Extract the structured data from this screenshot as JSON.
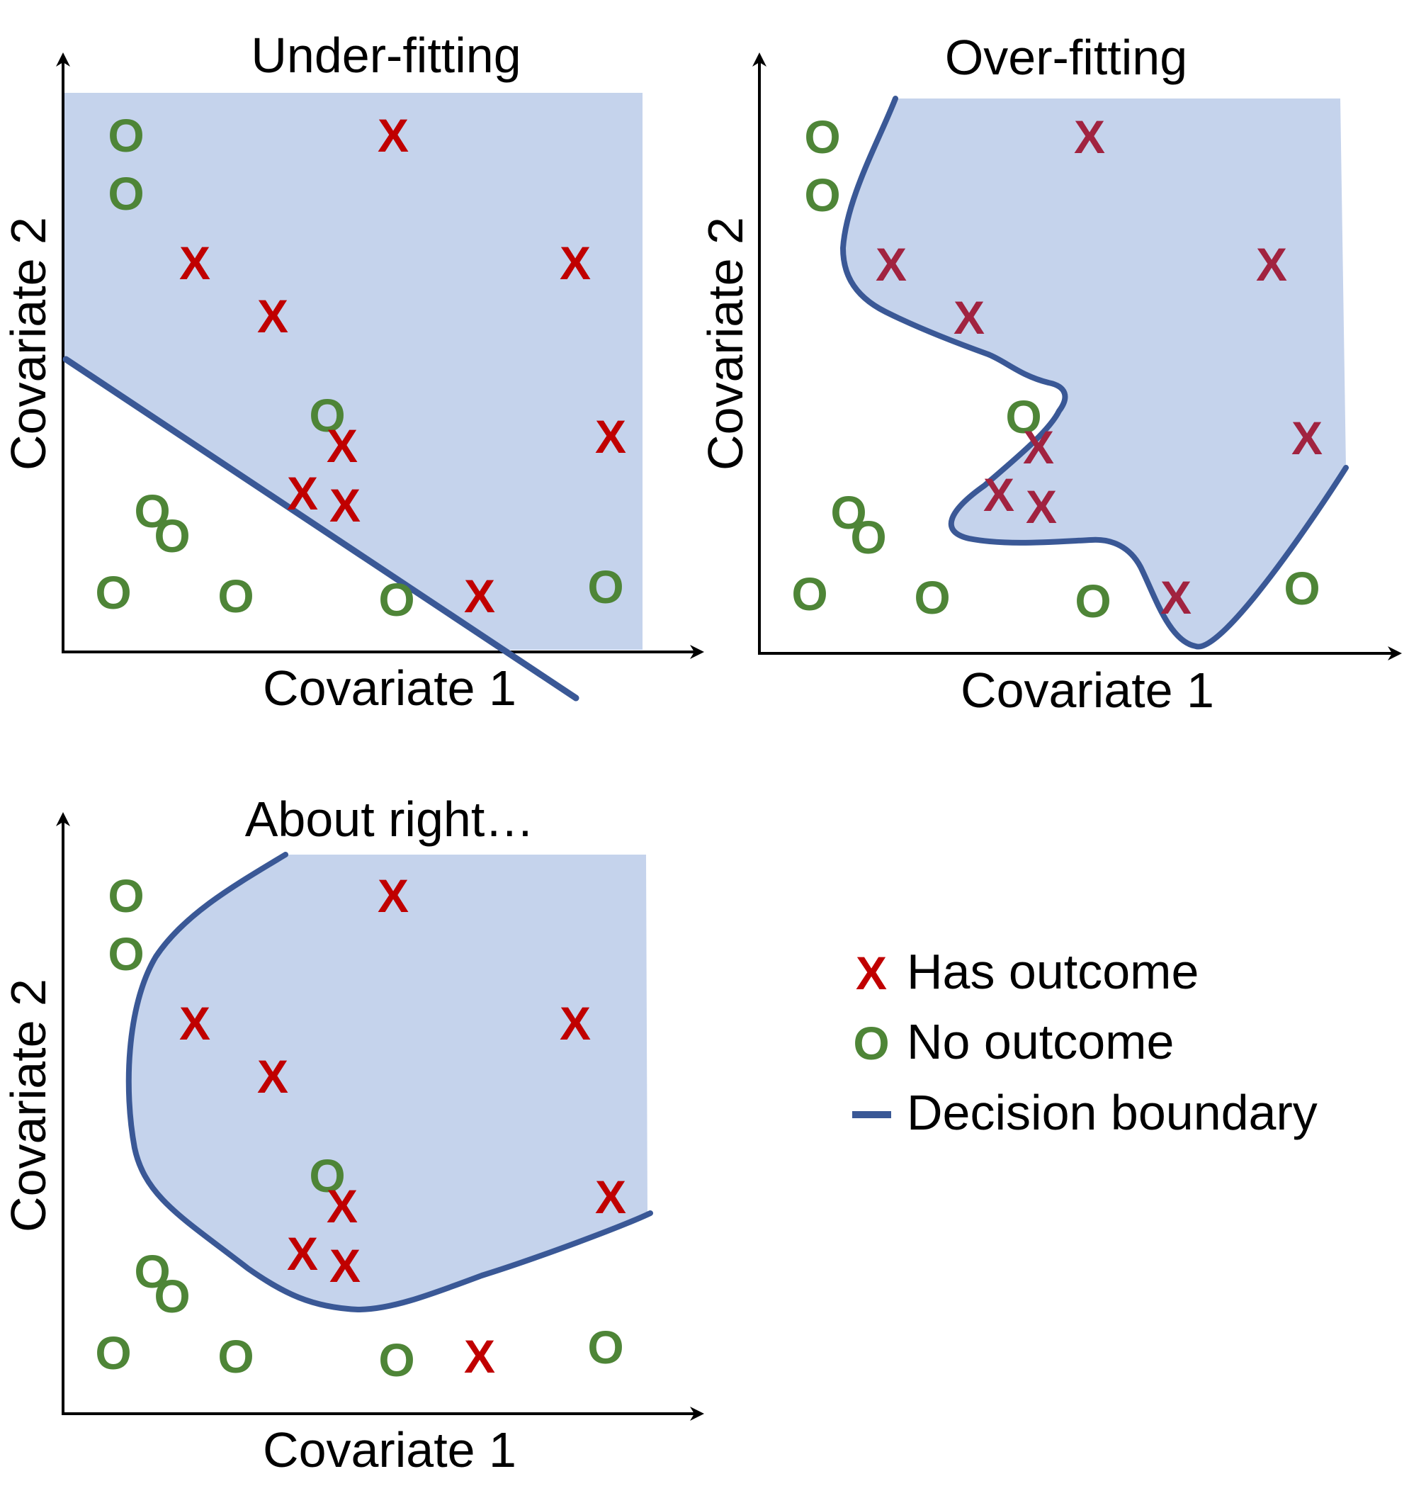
{
  "colors": {
    "region_fill": "#c5d3ec",
    "boundary": "#3a5896",
    "has_outcome": "#c00000",
    "has_outcome_overfit": "#a12340",
    "no_outcome": "#4e8537",
    "axis": "#000000"
  },
  "marker_glyphs": {
    "has_outcome": "X",
    "no_outcome": "O"
  },
  "panels": [
    {
      "id": "under-fitting",
      "title": "Under-fitting",
      "xlabel": "Covariate 1",
      "ylabel": "Covariate 2",
      "boundary_shape": "straight line"
    },
    {
      "id": "over-fitting",
      "title": "Over-fitting",
      "xlabel": "Covariate 1",
      "ylabel": "Covariate 2",
      "boundary_shape": "wiggly curve"
    },
    {
      "id": "about-right",
      "title": "About right…",
      "xlabel": "Covariate 1",
      "ylabel": "Covariate 2",
      "boundary_shape": "smooth curve"
    }
  ],
  "legend": {
    "items": [
      {
        "label": "Has outcome",
        "icon": "red-x-icon"
      },
      {
        "label": "No outcome",
        "icon": "green-o-icon"
      },
      {
        "label": "Decision boundary",
        "icon": "blue-line-icon"
      }
    ]
  }
}
